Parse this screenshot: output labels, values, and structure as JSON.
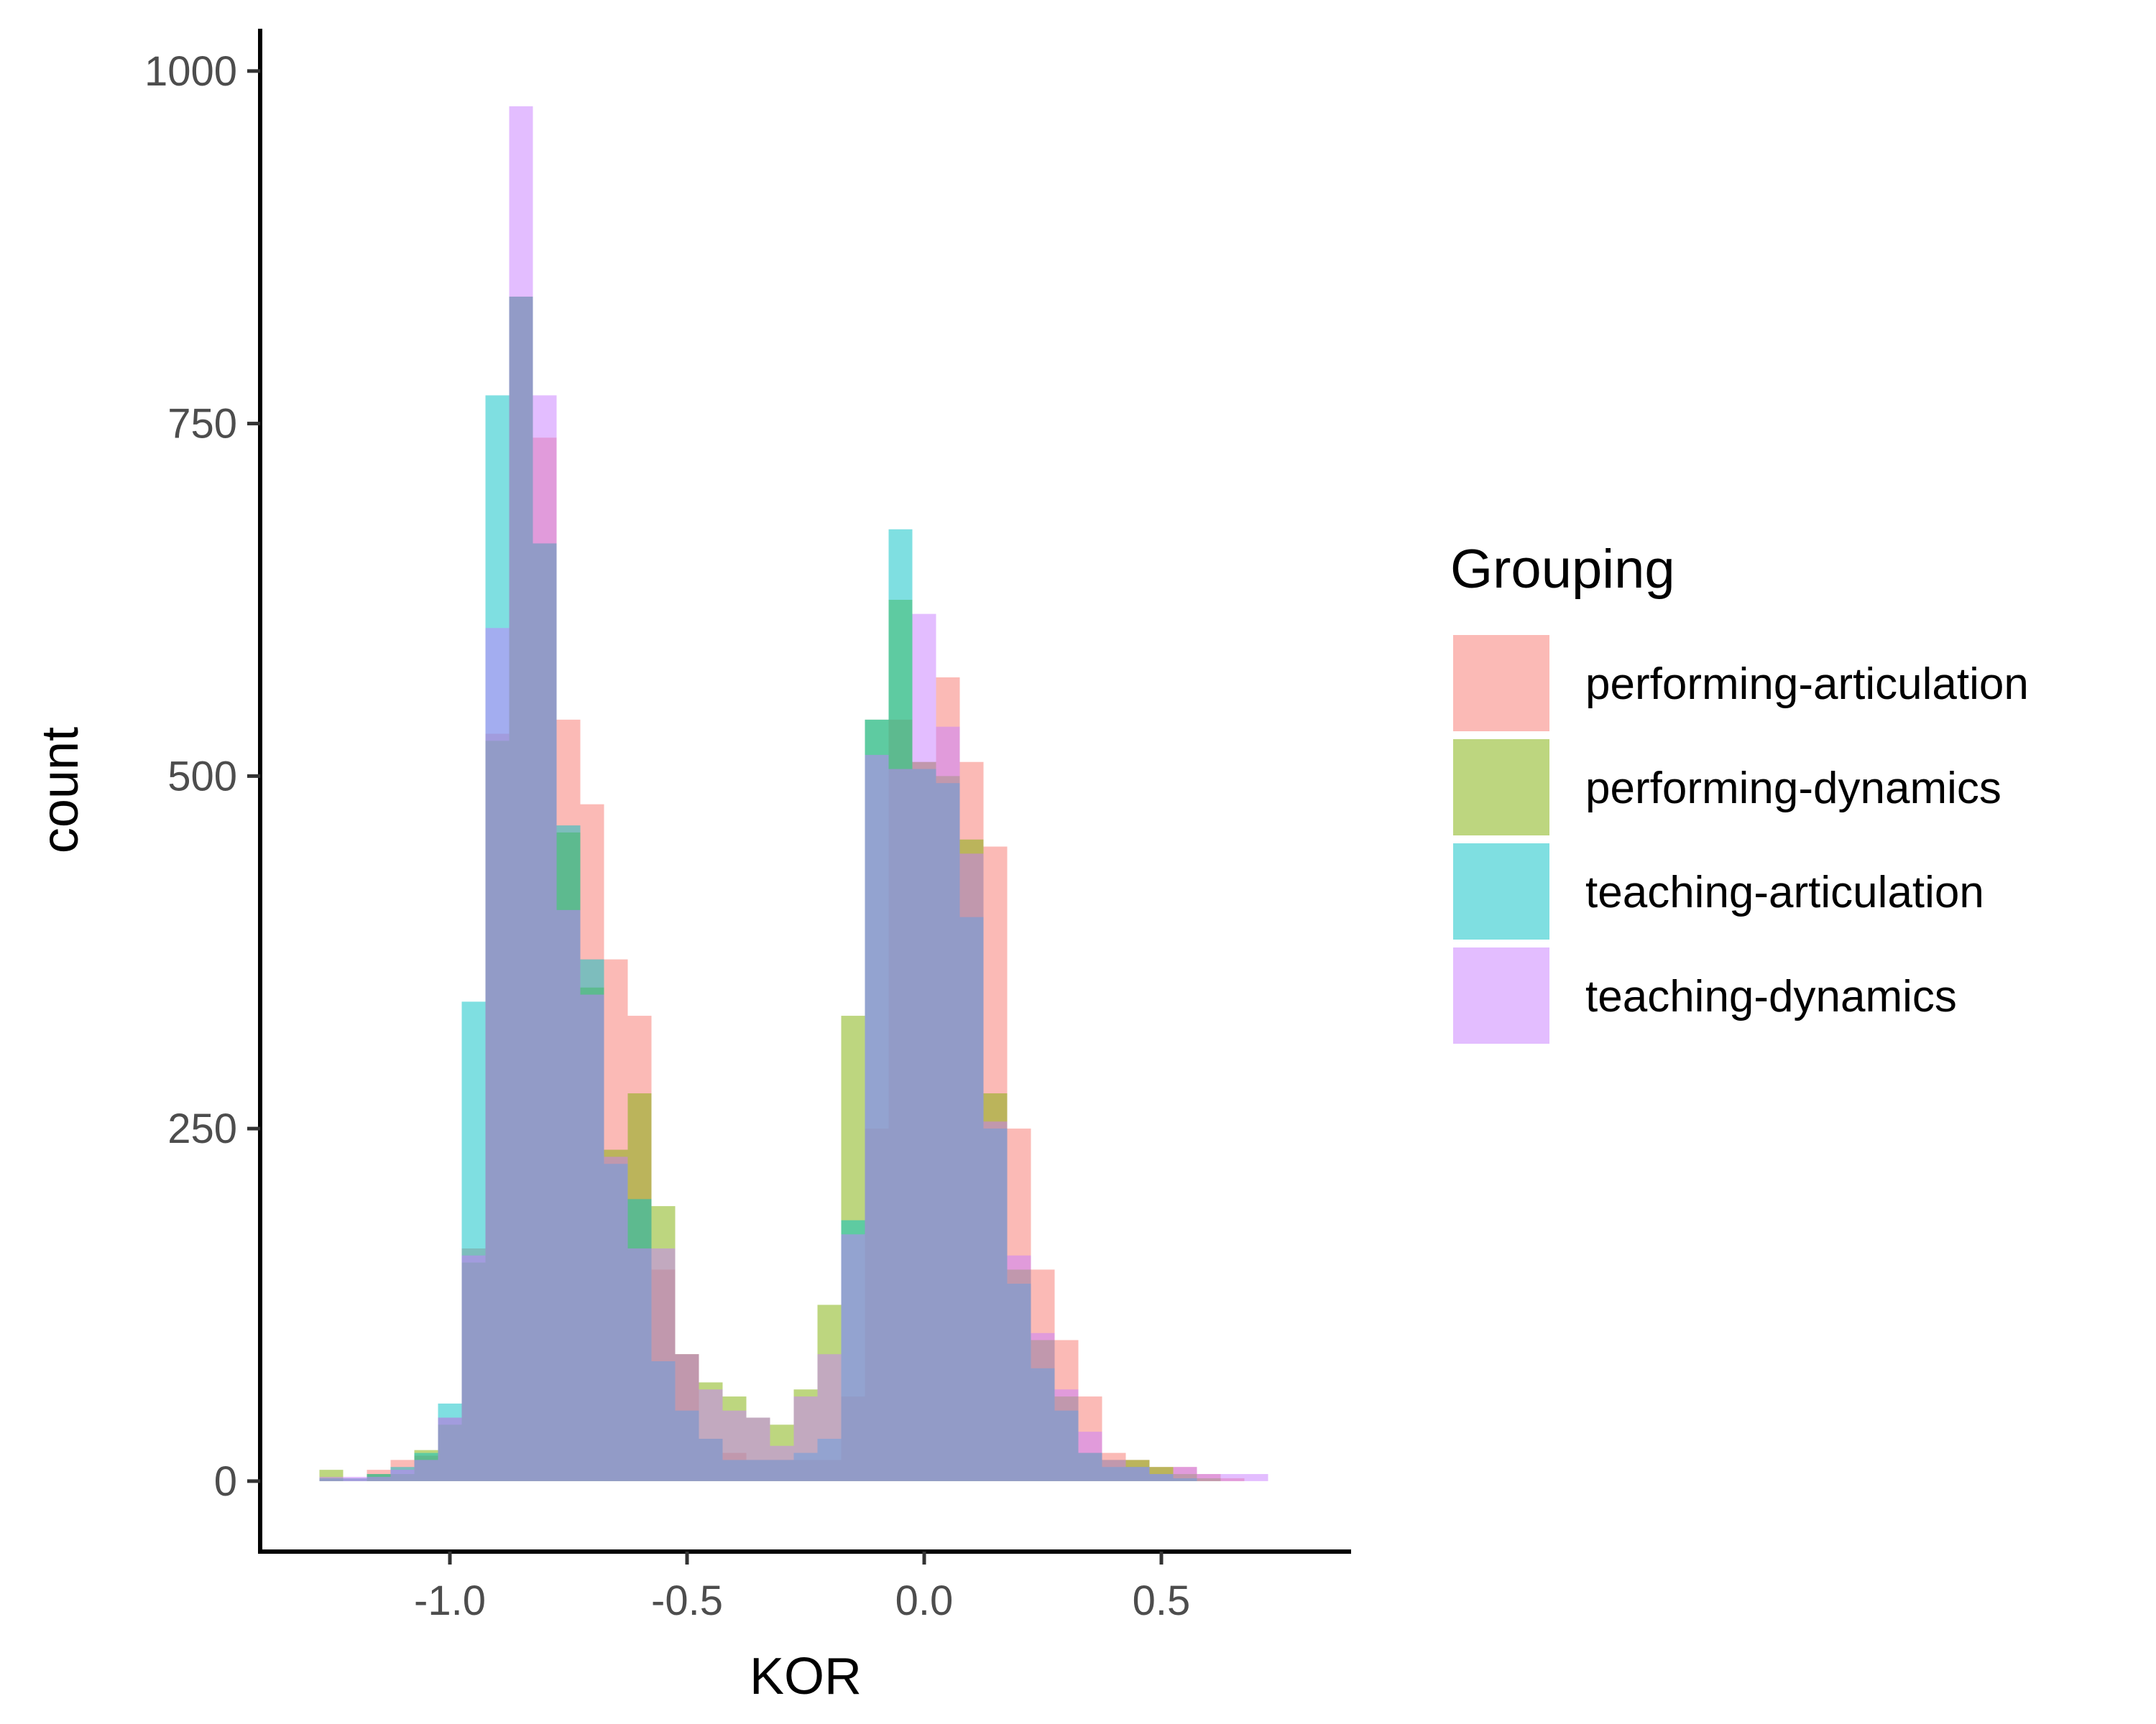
{
  "chart_data": {
    "type": "histogram",
    "title": "",
    "xlabel": "KOR",
    "ylabel": "count",
    "xlim": [
      -1.4,
      0.9
    ],
    "ylim": [
      -50,
      1030
    ],
    "x_ticks": [
      -1.0,
      -0.5,
      0.0,
      0.5
    ],
    "x_tick_labels": [
      "-1.0",
      "-0.5",
      "0.0",
      "0.5"
    ],
    "y_ticks": [
      0,
      250,
      500,
      750,
      1000
    ],
    "y_tick_labels": [
      "0",
      "250",
      "500",
      "750",
      "1000"
    ],
    "grid": false,
    "legend": {
      "title": "Grouping",
      "position": "right"
    },
    "bin_width": 0.05,
    "bin_start": -1.325,
    "series": [
      {
        "name": "performing-articulation",
        "color": "#F8766D",
        "values": [
          0,
          2,
          2,
          8,
          15,
          18,
          45,
          165,
          530,
          840,
          740,
          540,
          480,
          370,
          330,
          150,
          90,
          30,
          20,
          15,
          15,
          15,
          15,
          60,
          250,
          540,
          510,
          570,
          510,
          450,
          250,
          150,
          100,
          60,
          20,
          15,
          10,
          10,
          5,
          2,
          0,
          0,
          0
        ]
      },
      {
        "name": "performing-dynamics",
        "color": "#7CAE00",
        "values": [
          0,
          8,
          0,
          5,
          5,
          22,
          40,
          155,
          525,
          840,
          665,
          460,
          350,
          235,
          275,
          195,
          90,
          70,
          60,
          45,
          40,
          65,
          125,
          330,
          540,
          625,
          510,
          500,
          455,
          275,
          150,
          100,
          60,
          20,
          15,
          15,
          10,
          5,
          2,
          0,
          0,
          0,
          0
        ]
      },
      {
        "name": "teaching-articulation",
        "color": "#00BFC4",
        "values": [
          0,
          2,
          2,
          5,
          10,
          20,
          55,
          340,
          770,
          840,
          665,
          465,
          370,
          225,
          200,
          85,
          50,
          30,
          15,
          15,
          15,
          20,
          30,
          185,
          540,
          675,
          505,
          495,
          400,
          250,
          140,
          80,
          50,
          20,
          10,
          10,
          5,
          2,
          0,
          0,
          0,
          0,
          0
        ]
      },
      {
        "name": "teaching-dynamics",
        "color": "#C77CFF",
        "values": [
          0,
          3,
          3,
          3,
          8,
          15,
          45,
          160,
          605,
          975,
          770,
          405,
          345,
          230,
          165,
          165,
          90,
          65,
          50,
          45,
          25,
          60,
          90,
          175,
          515,
          505,
          615,
          535,
          445,
          255,
          160,
          105,
          65,
          35,
          15,
          10,
          5,
          10,
          5,
          5,
          5,
          0,
          0
        ]
      }
    ]
  }
}
